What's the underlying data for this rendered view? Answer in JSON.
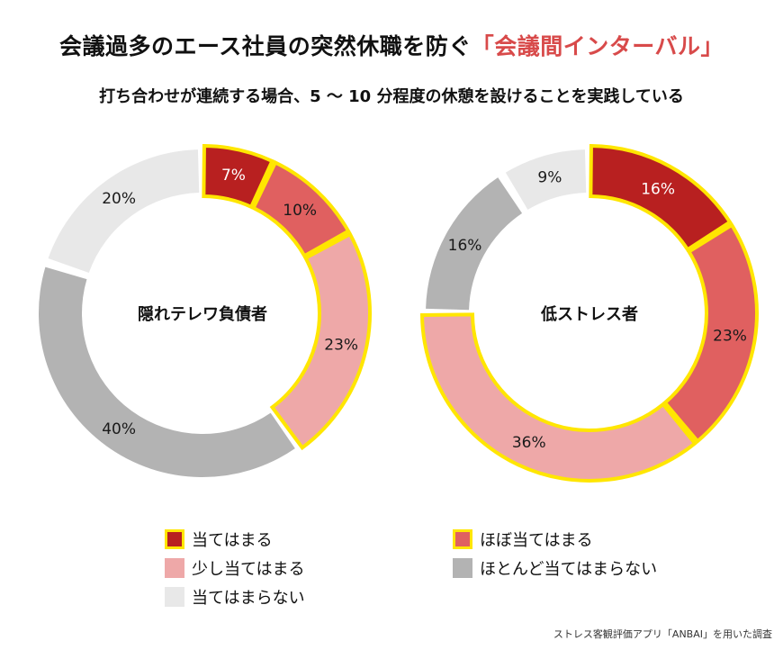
{
  "title": {
    "main": "会議過多のエース社員の突然休職を防ぐ",
    "highlight": "「会議間インターバル」"
  },
  "subtitle": "打ち合わせが連続する場合、5 〜 10 分程度の休憩を設けることを実践している",
  "colors": {
    "atehamaru": "#b82020",
    "hobo": "#e06060",
    "sukoshi": "#eea8a8",
    "hotondo": "#b3b3b3",
    "ategamaranai": "#e8e8e8",
    "highlight_border": "#ffe600"
  },
  "chart_data": [
    {
      "type": "pie",
      "donut": true,
      "center_label": "隠れテレワ負債者",
      "categories": [
        "当てはまる",
        "ほぼ当てはまる",
        "少し当てはまる",
        "ほとんど当てはまらない",
        "当てはまらない"
      ],
      "values": [
        7,
        10,
        23,
        40,
        20
      ],
      "labels": [
        "7%",
        "10%",
        "23%",
        "40%",
        "20%"
      ],
      "highlighted": [
        true,
        true,
        true,
        false,
        false
      ]
    },
    {
      "type": "pie",
      "donut": true,
      "center_label": "低ストレス者",
      "categories": [
        "当てはまる",
        "ほぼ当てはまる",
        "少し当てはまる",
        "ほとんど当てはまらない",
        "当てはまらない"
      ],
      "values": [
        16,
        23,
        36,
        16,
        9
      ],
      "labels": [
        "16%",
        "23%",
        "36%",
        "16%",
        "9%"
      ],
      "highlighted": [
        true,
        true,
        true,
        false,
        false
      ]
    }
  ],
  "legend": [
    {
      "label": "当てはまる",
      "color_key": "atehamaru",
      "highlighted": true
    },
    {
      "label": "ほぼ当てはまる",
      "color_key": "hobo",
      "highlighted": true
    },
    {
      "label": "少し当てはまる",
      "color_key": "sukoshi",
      "highlighted": false
    },
    {
      "label": "ほとんど当てはまらない",
      "color_key": "hotondo",
      "highlighted": false
    },
    {
      "label": "当てはまらない",
      "color_key": "ategamaranai",
      "highlighted": false
    }
  ],
  "source": "ストレス客観評価アプリ「ANBAI」を用いた調査"
}
